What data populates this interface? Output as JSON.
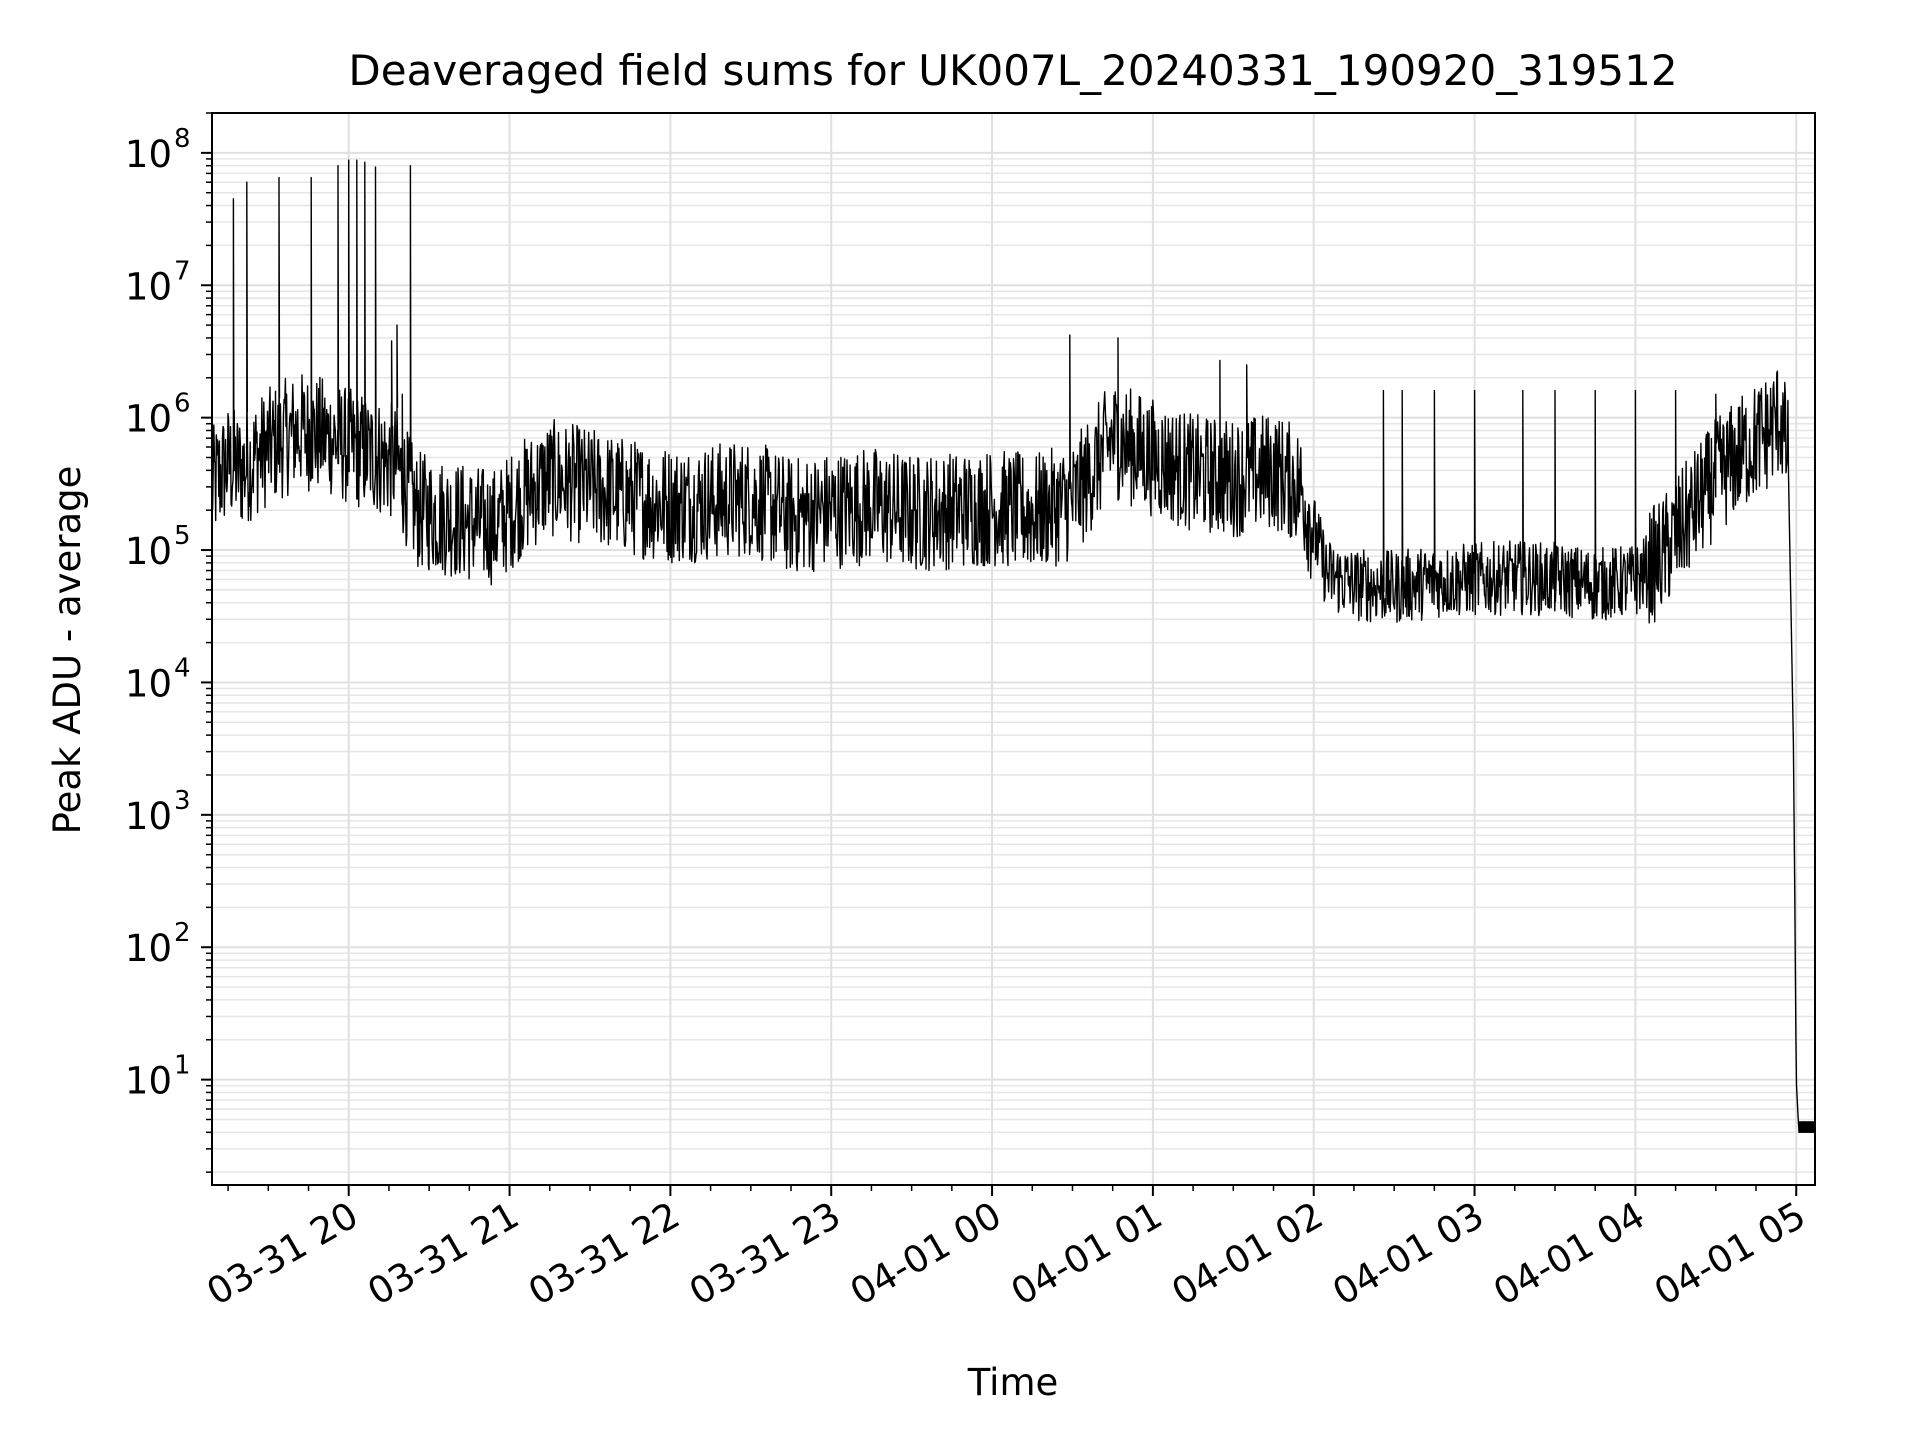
{
  "chart_data": {
    "type": "line",
    "title": "Deaveraged field sums for UK007L_20240331_190920_319512",
    "xlabel": "Time",
    "ylabel": "Peak ADU - average",
    "yscale": "log",
    "ylim": [
      1.6,
      200000000.0
    ],
    "xlim": [
      "2024-03-31 19:09",
      "2024-04-01 05:07"
    ],
    "grid": true,
    "legend": "none",
    "line_color": "#000000",
    "x_ticks": [
      "03-31 20",
      "03-31 21",
      "03-31 22",
      "03-31 23",
      "04-01 00",
      "04-01 01",
      "04-01 02",
      "04-01 03",
      "04-01 04",
      "04-01 05"
    ],
    "y_ticks": [
      {
        "value": 10,
        "base": "10",
        "exp": "1"
      },
      {
        "value": 100,
        "base": "10",
        "exp": "2"
      },
      {
        "value": 1000,
        "base": "10",
        "exp": "3"
      },
      {
        "value": 10000,
        "base": "10",
        "exp": "4"
      },
      {
        "value": 100000,
        "base": "10",
        "exp": "5"
      },
      {
        "value": 1000000,
        "base": "10",
        "exp": "6"
      },
      {
        "value": 10000000,
        "base": "10",
        "exp": "7"
      },
      {
        "value": 100000000,
        "base": "10",
        "exp": "8"
      }
    ],
    "series": [
      {
        "x": [
          "2024-03-31 19:09",
          "2024-03-31 19:15",
          "2024-03-31 19:20",
          "2024-03-31 19:25",
          "2024-03-31 19:30",
          "2024-03-31 19:36",
          "2024-03-31 19:42",
          "2024-03-31 19:48",
          "2024-03-31 19:54",
          "2024-03-31 20:00",
          "2024-03-31 20:06",
          "2024-03-31 20:12",
          "2024-03-31 20:18",
          "2024-03-31 20:25",
          "2024-03-31 20:35",
          "2024-03-31 20:45",
          "2024-03-31 20:55",
          "2024-03-31 21:05",
          "2024-03-31 21:15",
          "2024-03-31 21:30",
          "2024-03-31 21:45",
          "2024-03-31 22:00",
          "2024-03-31 22:15",
          "2024-03-31 22:30",
          "2024-03-31 22:45",
          "2024-03-31 23:00",
          "2024-03-31 23:15",
          "2024-03-31 23:30",
          "2024-03-31 23:45",
          "2024-04-01 00:00",
          "2024-04-01 00:15",
          "2024-04-01 00:30",
          "2024-04-01 00:45",
          "2024-04-01 01:00",
          "2024-04-01 01:15",
          "2024-04-01 01:30",
          "2024-04-01 01:45",
          "2024-04-01 01:55",
          "2024-04-01 02:05",
          "2024-04-01 02:15",
          "2024-04-01 02:30",
          "2024-04-01 02:45",
          "2024-04-01 03:00",
          "2024-04-01 03:15",
          "2024-04-01 03:30",
          "2024-04-01 03:45",
          "2024-04-01 04:00",
          "2024-04-01 04:10",
          "2024-04-01 04:20",
          "2024-04-01 04:30",
          "2024-04-01 04:40",
          "2024-04-01 04:50",
          "2024-04-01 04:54",
          "2024-04-01 04:57",
          "2024-04-01 04:59",
          "2024-04-01 05:00",
          "2024-04-01 05:01",
          "2024-04-01 05:03",
          "2024-04-01 05:07"
        ],
        "y": [
          300000,
          450000,
          400000,
          500000,
          600000,
          700000,
          800000,
          750000,
          700000,
          600000,
          550000,
          500000,
          450000,
          200000,
          180000,
          160000,
          150000,
          250000,
          350000,
          300000,
          250000,
          220000,
          230000,
          250000,
          180000,
          200000,
          220000,
          190000,
          200000,
          210000,
          190000,
          230000,
          700000,
          500000,
          380000,
          350000,
          400000,
          300000,
          65000,
          55000,
          52000,
          58000,
          60000,
          62000,
          60000,
          55000,
          58000,
          90000,
          180000,
          350000,
          550000,
          800000,
          1050000,
          500000,
          3000,
          10,
          4,
          4,
          4
        ]
      }
    ],
    "spikes": {
      "x": [
        "2024-03-31 19:17",
        "2024-03-31 19:22",
        "2024-03-31 19:34",
        "2024-03-31 19:46",
        "2024-03-31 19:56",
        "2024-03-31 20:00",
        "2024-03-31 20:03",
        "2024-03-31 20:06",
        "2024-03-31 20:10",
        "2024-03-31 20:16",
        "2024-03-31 20:18",
        "2024-03-31 20:20",
        "2024-03-31 20:23",
        "2024-04-01 00:29",
        "2024-04-01 00:47",
        "2024-04-01 01:25",
        "2024-04-01 01:35",
        "2024-04-01 02:26",
        "2024-04-01 02:33",
        "2024-04-01 02:45",
        "2024-04-01 03:00",
        "2024-04-01 03:18",
        "2024-04-01 03:30",
        "2024-04-01 03:45",
        "2024-04-01 04:00",
        "2024-04-01 04:15",
        "2024-04-01 04:30"
      ],
      "y": [
        45000000,
        60000000,
        65000000,
        65000000,
        80000000,
        88000000,
        88000000,
        85000000,
        78000000,
        3800000,
        5000000,
        1500000,
        80000000,
        4200000,
        4000000,
        2700000,
        2500000,
        1600000,
        1600000,
        1600000,
        1600000,
        1600000,
        1600000,
        1600000,
        1600000,
        1600000,
        1500000
      ]
    }
  }
}
